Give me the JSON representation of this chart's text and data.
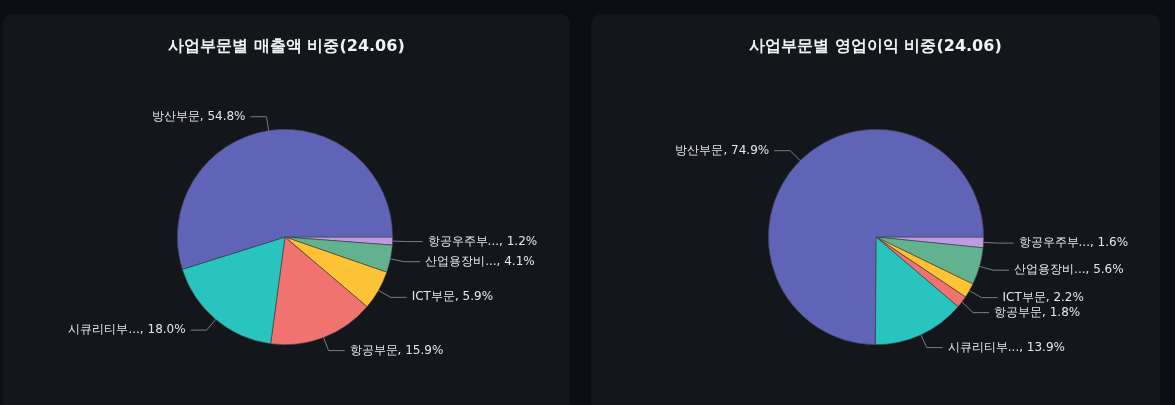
{
  "chart_data": [
    {
      "type": "pie",
      "title": "사업부문별 매출액 비중(24.06)",
      "categories": [
        "항공우주부...",
        "산업용장비...",
        "ICT부문",
        "항공부문",
        "시큐리티부...",
        "방산부문"
      ],
      "values": [
        1.2,
        4.1,
        5.9,
        15.9,
        18.0,
        54.8
      ],
      "value_labels": [
        "1.2%",
        "4.1%",
        "5.9%",
        "15.9%",
        "18.0%",
        "54.8%"
      ],
      "colors": [
        "#c09be3",
        "#62b28f",
        "#fdc334",
        "#f17370",
        "#29c4bd",
        "#6064b6"
      ]
    },
    {
      "type": "pie",
      "title": "사업부문별 영업이익 비중(24.06)",
      "categories": [
        "항공우주부...",
        "산업용장비...",
        "ICT부문",
        "항공부문",
        "시큐리티부...",
        "방산부문"
      ],
      "values": [
        1.6,
        5.6,
        2.2,
        1.8,
        13.9,
        74.9
      ],
      "value_labels": [
        "1.6%",
        "5.6%",
        "2.2%",
        "1.8%",
        "13.9%",
        "74.9%"
      ],
      "colors": [
        "#c09be3",
        "#62b28f",
        "#fdc334",
        "#f17370",
        "#29c4bd",
        "#6064b6"
      ]
    }
  ]
}
